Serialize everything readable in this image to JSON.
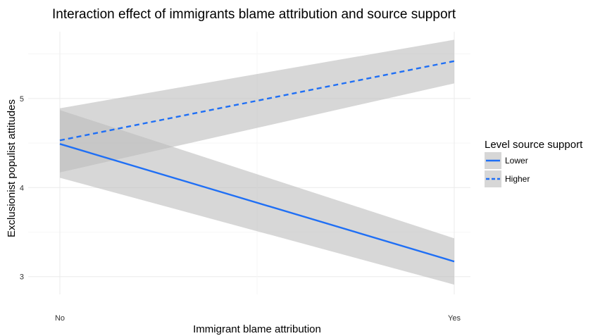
{
  "chart_data": {
    "type": "line",
    "title": "Interaction effect of immigrants blame attribution and source support",
    "xlabel": "Immigrant blame attribution",
    "ylabel": "Exclusionist populist attitudes",
    "categories": [
      "No",
      "Yes"
    ],
    "y_ticks": [
      "3",
      "4",
      "5"
    ],
    "ylim": [
      2.8,
      5.75
    ],
    "grid": true,
    "legend": {
      "title": "Level source support",
      "position": "right"
    },
    "series": [
      {
        "name": "Lower",
        "values": [
          4.49,
          3.17
        ],
        "ci_low": [
          4.11,
          2.91
        ],
        "ci_high": [
          4.87,
          3.43
        ],
        "line_style": "solid",
        "color": "#1f6ff5"
      },
      {
        "name": "Higher",
        "values": [
          4.53,
          5.42
        ],
        "ci_low": [
          4.17,
          5.17
        ],
        "ci_high": [
          4.89,
          5.66
        ],
        "line_style": "dashed",
        "color": "#1f6ff5"
      }
    ],
    "ribbon_color": "#bdbdbd"
  }
}
